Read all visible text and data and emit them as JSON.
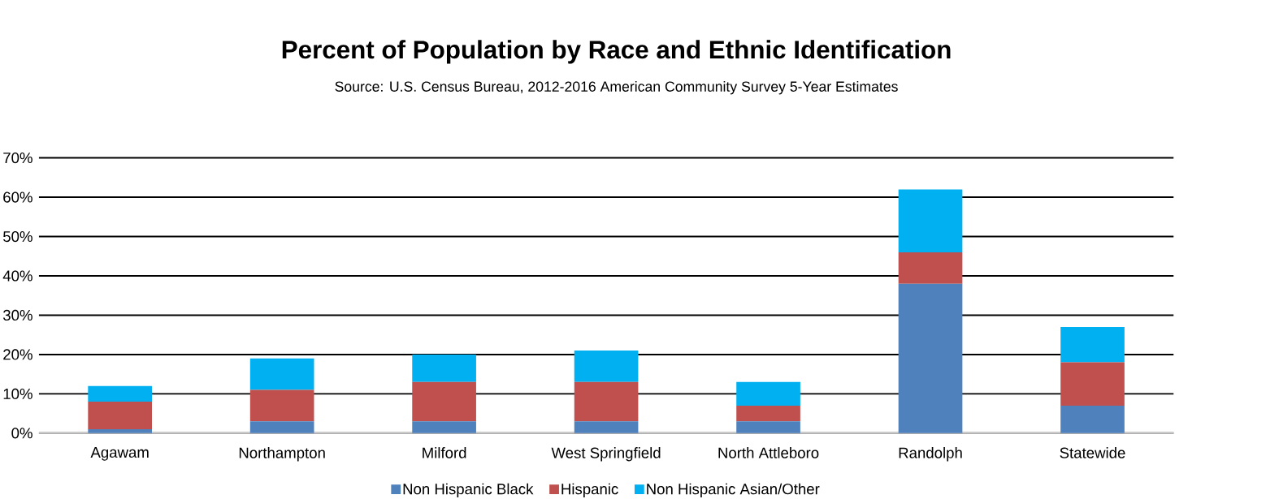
{
  "chart_data": {
    "type": "bar",
    "stacked": true,
    "title": "Percent of Population by Race and Ethnic Identification",
    "subtitle": "Source: U.S. Census Bureau, 2012-2016 American Community Survey 5-Year Estimates",
    "categories": [
      "Agawam",
      "Northampton",
      "Milford",
      "West Springfield",
      "North Attleboro",
      "Randolph",
      "Statewide"
    ],
    "series": [
      {
        "name": "Non Hispanic Black",
        "color": "#4f81bd",
        "values": [
          1,
          3,
          3,
          3,
          3,
          38,
          7
        ]
      },
      {
        "name": "Hispanic",
        "color": "#c0504d",
        "values": [
          7,
          8,
          10,
          10,
          4,
          8,
          11
        ]
      },
      {
        "name": "Non Hispanic Asian/Other",
        "color": "#00b0f0",
        "values": [
          4,
          8,
          7,
          8,
          6,
          16,
          9
        ]
      }
    ],
    "ylim": [
      0,
      70
    ],
    "yticks": [
      {
        "value": 0,
        "label": "0%"
      },
      {
        "value": 10,
        "label": "10%"
      },
      {
        "value": 20,
        "label": "20%"
      },
      {
        "value": 30,
        "label": "30%"
      },
      {
        "value": 40,
        "label": "40%"
      },
      {
        "value": 50,
        "label": "50%"
      },
      {
        "value": 60,
        "label": "60%"
      },
      {
        "value": 70,
        "label": "70%"
      }
    ],
    "grid": "y",
    "legend": "bottom"
  }
}
